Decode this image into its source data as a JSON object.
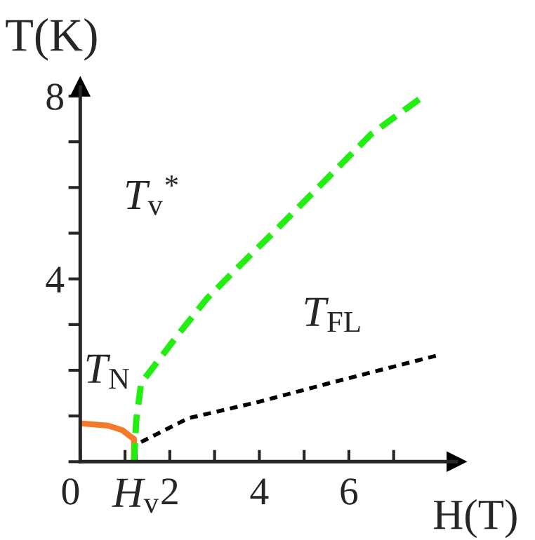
{
  "chart_data": {
    "type": "line",
    "xlabel": "H(T)",
    "ylabel": "T(K)",
    "xlim": [
      0,
      8.4
    ],
    "ylim": [
      0,
      8.2
    ],
    "xticks": [
      {
        "value": 0,
        "label": "0"
      },
      {
        "value": 1,
        "label": null
      },
      {
        "value": 1.25,
        "label": "H$_{v}$"
      },
      {
        "value": 2,
        "label": "2"
      },
      {
        "value": 3,
        "label": null
      },
      {
        "value": 4,
        "label": "4"
      },
      {
        "value": 5,
        "label": null
      },
      {
        "value": 6,
        "label": "6"
      },
      {
        "value": 7,
        "label": null
      }
    ],
    "yticks": [
      {
        "value": 0,
        "label": null
      },
      {
        "value": 1,
        "label": null
      },
      {
        "value": 2,
        "label": null
      },
      {
        "value": 3,
        "label": null
      },
      {
        "value": 4,
        "label": "4"
      },
      {
        "value": 5,
        "label": null
      },
      {
        "value": 6,
        "label": null
      },
      {
        "value": 7,
        "label": null
      },
      {
        "value": 8,
        "label": "8"
      }
    ],
    "series": [
      {
        "name": "T$_{N}$",
        "color": "#f47a2a",
        "line_style": "solid",
        "x": [
          0,
          0.62,
          0.94,
          1.15,
          1.2,
          1.2
        ],
        "values": [
          0.84,
          0.79,
          0.69,
          0.53,
          0.5,
          0
        ]
      },
      {
        "name": "T$_{v}$$^{*}$",
        "color": "#22ee11",
        "line_style": "dashed",
        "x": [
          1.2,
          1.25,
          1.36,
          2.2,
          2.83,
          3.56,
          4.3,
          5.04,
          5.77,
          6.5,
          7.67
        ],
        "values": [
          0,
          0.9,
          1.72,
          2.8,
          3.57,
          4.29,
          5.0,
          5.73,
          6.45,
          7.17,
          8.0
        ]
      },
      {
        "name": "T$_{FL}$",
        "color": "#000000",
        "line_style": "dotted",
        "x": [
          1.36,
          2.41,
          3.99,
          5.57,
          8.03
        ],
        "values": [
          0.43,
          0.95,
          1.31,
          1.72,
          2.34
        ]
      }
    ],
    "legend": false,
    "grid": false
  }
}
